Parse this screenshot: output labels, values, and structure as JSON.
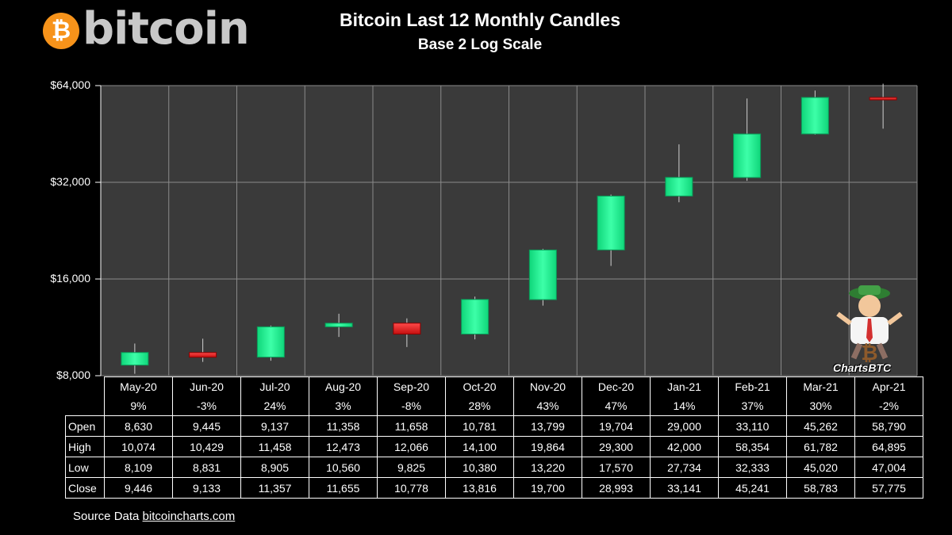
{
  "logo": {
    "coin_symbol": "₿",
    "wordmark": "bitcoin"
  },
  "mascot": {
    "label": "ChartsBTC"
  },
  "source": {
    "prefix": "Source Data ",
    "link": "bitcoincharts.com"
  },
  "colors": {
    "background": "#000000",
    "plot_bg": "#3a3a3a",
    "grid": "#8a8a8a",
    "up": "#19f28e",
    "down": "#e81c1c",
    "logo_orange": "#f7931a"
  },
  "table": {
    "row_labels": [
      "Open",
      "High",
      "Low",
      "Close"
    ]
  },
  "chart_data": {
    "type": "candlestick",
    "title": "Bitcoin Last 12 Monthly Candles",
    "subtitle": "Base 2 Log Scale",
    "y_scale": "log2",
    "ylim": [
      8000,
      64000
    ],
    "yticks": [
      8000,
      16000,
      32000,
      64000
    ],
    "ytick_labels": [
      "$8,000",
      "$16,000",
      "$32,000",
      "$64,000"
    ],
    "grid": true,
    "categories": [
      "May-20",
      "Jun-20",
      "Jul-20",
      "Aug-20",
      "Sep-20",
      "Oct-20",
      "Nov-20",
      "Dec-20",
      "Jan-21",
      "Feb-21",
      "Mar-21",
      "Apr-21"
    ],
    "pct_change": [
      "9%",
      "-3%",
      "24%",
      "3%",
      "-8%",
      "28%",
      "43%",
      "47%",
      "14%",
      "37%",
      "30%",
      "-2%"
    ],
    "open": [
      8630,
      9445,
      9137,
      11358,
      11658,
      10781,
      13799,
      19704,
      29000,
      33110,
      45262,
      58790
    ],
    "high": [
      10074,
      10429,
      11458,
      12473,
      12066,
      14100,
      19864,
      29300,
      42000,
      58354,
      61782,
      64895
    ],
    "low": [
      8109,
      8831,
      8905,
      10560,
      9825,
      10380,
      13220,
      17570,
      27734,
      32333,
      45020,
      47004
    ],
    "close": [
      9446,
      9133,
      11357,
      11655,
      10778,
      13816,
      19700,
      28993,
      33141,
      45241,
      58783,
      57775
    ],
    "open_labels": [
      "8,630",
      "9,445",
      "9,137",
      "11,358",
      "11,658",
      "10,781",
      "13,799",
      "19,704",
      "29,000",
      "33,110",
      "45,262",
      "58,790"
    ],
    "high_labels": [
      "10,074",
      "10,429",
      "11,458",
      "12,473",
      "12,066",
      "14,100",
      "19,864",
      "29,300",
      "42,000",
      "58,354",
      "61,782",
      "64,895"
    ],
    "low_labels": [
      "8,109",
      "8,831",
      "8,905",
      "10,560",
      "9,825",
      "10,380",
      "13,220",
      "17,570",
      "27,734",
      "32,333",
      "45,020",
      "47,004"
    ],
    "close_labels": [
      "9,446",
      "9,133",
      "11,357",
      "11,655",
      "10,778",
      "13,816",
      "19,700",
      "28,993",
      "33,141",
      "45,241",
      "58,783",
      "57,775"
    ]
  }
}
